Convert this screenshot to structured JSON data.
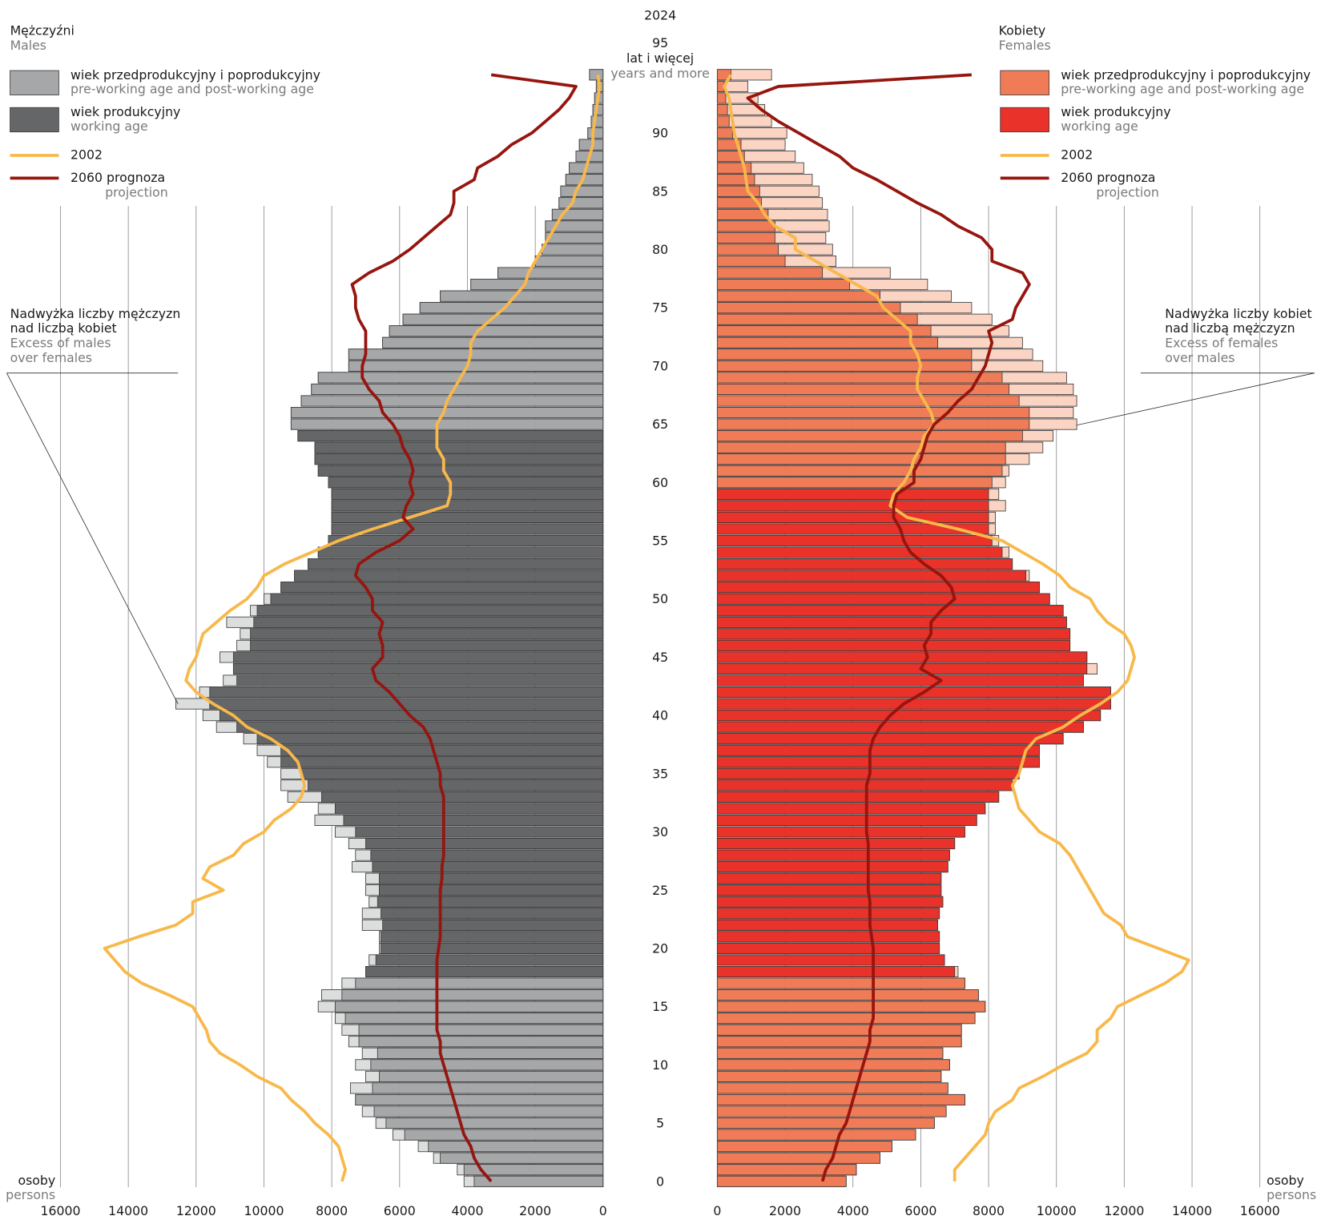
{
  "chart_data": {
    "type": "pyramid",
    "title": "2024",
    "ages": [
      0,
      1,
      2,
      3,
      4,
      5,
      6,
      7,
      8,
      9,
      10,
      11,
      12,
      13,
      14,
      15,
      16,
      17,
      18,
      19,
      20,
      21,
      22,
      23,
      24,
      25,
      26,
      27,
      28,
      29,
      30,
      31,
      32,
      33,
      34,
      35,
      36,
      37,
      38,
      39,
      40,
      41,
      42,
      43,
      44,
      45,
      46,
      47,
      48,
      49,
      50,
      51,
      52,
      53,
      54,
      55,
      56,
      57,
      58,
      59,
      60,
      61,
      62,
      63,
      64,
      65,
      66,
      67,
      68,
      69,
      70,
      71,
      72,
      73,
      74,
      75,
      76,
      77,
      78,
      79,
      80,
      81,
      82,
      83,
      84,
      85,
      86,
      87,
      88,
      89,
      90,
      91,
      92,
      93,
      94,
      95
    ],
    "ylim": [
      0,
      95
    ],
    "yticks": [
      0,
      5,
      10,
      15,
      20,
      25,
      30,
      35,
      40,
      45,
      50,
      55,
      60,
      65,
      70,
      75,
      80,
      85,
      90,
      95
    ],
    "top_age_label": "lat i więcej",
    "top_age_label_en": "years and more",
    "unit_label": "osoby",
    "unit_label_en": "persons",
    "xlim": [
      0,
      16000
    ],
    "xticks": [
      0,
      2000,
      4000,
      6000,
      8000,
      10000,
      12000,
      14000,
      16000
    ],
    "grid": true,
    "panels": [
      {
        "name": "Mężczyźni",
        "name_en": "Males",
        "side": "left",
        "working_age": [
          18,
          64
        ],
        "colors": {
          "other": "#a6a7a9",
          "working": "#656668",
          "excess": "#dcdddd"
        },
        "legend": [
          {
            "label": "wiek przedprodukcyjny i poprodukcyjny",
            "label_en": "pre-working age and post-working age",
            "color": "#a6a7a9"
          },
          {
            "label": "wiek produkcyjny",
            "label_en": "working age",
            "color": "#656668"
          }
        ],
        "annotation": [
          "Nadwyżka liczby mężczyzn",
          "nad liczbą kobiet"
        ],
        "annotation_en": [
          "Excess of males",
          "over females"
        ],
        "values": [
          4100,
          4300,
          5000,
          5450,
          6200,
          6700,
          7100,
          7300,
          7450,
          7000,
          7300,
          7100,
          7500,
          7700,
          7900,
          8400,
          8300,
          7700,
          7000,
          6900,
          6600,
          6600,
          7100,
          7100,
          6900,
          7000,
          7000,
          7400,
          7300,
          7500,
          7900,
          8500,
          8400,
          9300,
          9500,
          9500,
          9900,
          10200,
          10600,
          11400,
          11800,
          12600,
          11900,
          11200,
          10900,
          11300,
          10800,
          10700,
          11100,
          10400,
          10000,
          9500,
          9100,
          8700,
          8400,
          8100,
          8000,
          8000,
          8000,
          8000,
          8100,
          8400,
          8500,
          8500,
          9000,
          9200,
          9200,
          8900,
          8600,
          8400,
          7500,
          7500,
          6500,
          6300,
          5900,
          5400,
          4800,
          3900,
          3100,
          2000,
          1800,
          1700,
          1700,
          1500,
          1300,
          1250,
          1100,
          1000,
          800,
          700,
          450,
          350,
          300,
          250,
          200,
          400
        ],
        "lines": [
          {
            "name": "2002",
            "color": "#f8b84a",
            "values": [
              7700,
              7600,
              7700,
              7800,
              8100,
              8500,
              8800,
              9200,
              9500,
              10200,
              10700,
              11300,
              11600,
              11700,
              11900,
              12100,
              12800,
              13600,
              14100,
              14400,
              14700,
              13700,
              12600,
              12100,
              12100,
              11200,
              11800,
              11600,
              10900,
              10600,
              10000,
              9700,
              9200,
              8900,
              8800,
              8900,
              9000,
              9300,
              9800,
              10500,
              10900,
              11500,
              12000,
              12300,
              12200,
              12000,
              11900,
              11800,
              11400,
              11000,
              10500,
              10200,
              10000,
              9400,
              8600,
              7800,
              6800,
              5700,
              4600,
              4500,
              4500,
              4700,
              4700,
              4900,
              4900,
              4900,
              4700,
              4600,
              4400,
              4200,
              4000,
              3900,
              3900,
              3700,
              3300,
              2900,
              2600,
              2300,
              2200,
              2000,
              1800,
              1600,
              1400,
              1200,
              900,
              800,
              600,
              500,
              400,
              300,
              300,
              250,
              200,
              150,
              100,
              150
            ]
          },
          {
            "name": "2060 prognoza",
            "name_en": "projection",
            "color": "#96150f",
            "values": [
              3300,
              3600,
              3800,
              3900,
              4100,
              4200,
              4300,
              4400,
              4500,
              4600,
              4700,
              4800,
              4800,
              4900,
              4900,
              4900,
              4900,
              4900,
              4900,
              4900,
              4850,
              4800,
              4800,
              4800,
              4800,
              4800,
              4750,
              4750,
              4700,
              4700,
              4700,
              4700,
              4700,
              4700,
              4800,
              4800,
              4900,
              5000,
              5100,
              5300,
              5700,
              6000,
              6300,
              6700,
              6800,
              6500,
              6500,
              6600,
              6500,
              6800,
              6800,
              7000,
              7300,
              7200,
              6700,
              6000,
              5600,
              5900,
              5800,
              5600,
              5700,
              5600,
              5700,
              5900,
              6000,
              6200,
              6500,
              6600,
              6900,
              7100,
              7100,
              7000,
              7000,
              7000,
              7200,
              7300,
              7300,
              7400,
              6900,
              6200,
              5700,
              5300,
              4900,
              4500,
              4400,
              4400,
              3800,
              3700,
              3100,
              2700,
              2100,
              1700,
              1300,
              1000,
              800,
              3300
            ]
          }
        ]
      },
      {
        "name": "Kobiety",
        "name_en": "Females",
        "side": "right",
        "working_age": [
          18,
          59
        ],
        "colors": {
          "other": "#f07b57",
          "working": "#e8322a",
          "excess": "#fbd4c3"
        },
        "legend": [
          {
            "label": "wiek przedprodukcyjny i poprodukcyjny",
            "label_en": "pre-working age and post-working age",
            "color": "#f07b57"
          },
          {
            "label": "wiek produkcyjny",
            "label_en": "working age",
            "color": "#e8322a"
          }
        ],
        "annotation": [
          "Nadwyżka liczby kobiet",
          "nad liczbą mężczyzn"
        ],
        "annotation_en": [
          "Excess of females",
          "over males"
        ],
        "values": [
          3800,
          4100,
          4800,
          5150,
          5850,
          6400,
          6750,
          7300,
          6800,
          6600,
          6850,
          6650,
          7200,
          7200,
          7600,
          7900,
          7700,
          7300,
          7100,
          6700,
          6550,
          6550,
          6500,
          6550,
          6650,
          6600,
          6600,
          6800,
          6850,
          7000,
          7300,
          7650,
          7900,
          8300,
          8700,
          8900,
          9500,
          9500,
          10200,
          10800,
          11300,
          11600,
          11600,
          10800,
          11200,
          10900,
          10400,
          10400,
          10300,
          10200,
          9800,
          9500,
          9200,
          8700,
          8600,
          8300,
          8200,
          8200,
          8500,
          8300,
          8500,
          8600,
          9200,
          9600,
          9900,
          10600,
          10500,
          10600,
          10500,
          10300,
          9600,
          9300,
          9000,
          8600,
          8100,
          7500,
          6900,
          6200,
          5100,
          3500,
          3400,
          3200,
          3300,
          3250,
          3100,
          3000,
          2800,
          2550,
          2300,
          2000,
          2050,
          1600,
          1400,
          1200,
          900,
          1600
        ],
        "lines": [
          {
            "name": "2002",
            "color": "#f8b84a",
            "values": [
              7000,
              7000,
              7300,
              7600,
              7900,
              8000,
              8200,
              8700,
              8900,
              9600,
              10200,
              10900,
              11200,
              11200,
              11600,
              11800,
              12500,
              13200,
              13700,
              13900,
              13000,
              12100,
              11900,
              11400,
              11200,
              11000,
              10800,
              10600,
              10400,
              10100,
              9500,
              9200,
              8900,
              8800,
              8700,
              8900,
              9000,
              9100,
              9400,
              10200,
              10700,
              11300,
              11800,
              12100,
              12200,
              12300,
              12200,
              12000,
              11500,
              11200,
              11000,
              10400,
              10100,
              9600,
              9000,
              8400,
              7100,
              5600,
              5100,
              5200,
              5500,
              5700,
              5800,
              6000,
              6100,
              6400,
              6300,
              6100,
              5900,
              5900,
              6000,
              5900,
              5700,
              5700,
              5300,
              4900,
              4700,
              4100,
              3500,
              2900,
              2300,
              2300,
              1700,
              1400,
              1200,
              900,
              850,
              800,
              700,
              600,
              500,
              450,
              400,
              350,
              200,
              400
            ]
          },
          {
            "name": "2060 prognoza",
            "name_en": "projection",
            "color": "#96150f",
            "values": [
              3100,
              3200,
              3400,
              3500,
              3600,
              3800,
              3900,
              4000,
              4100,
              4200,
              4300,
              4400,
              4500,
              4500,
              4600,
              4600,
              4600,
              4600,
              4600,
              4600,
              4600,
              4550,
              4500,
              4500,
              4500,
              4450,
              4450,
              4450,
              4450,
              4450,
              4400,
              4400,
              4400,
              4400,
              4400,
              4500,
              4500,
              4500,
              4600,
              4800,
              5100,
              5500,
              6100,
              6600,
              6000,
              6200,
              6100,
              6300,
              6300,
              6600,
              7000,
              6900,
              6600,
              6100,
              5700,
              5500,
              5400,
              5200,
              5200,
              5300,
              5800,
              5800,
              6000,
              6100,
              6200,
              6400,
              6800,
              7100,
              7500,
              7700,
              7900,
              8000,
              8100,
              8000,
              8700,
              8800,
              9000,
              9200,
              9000,
              8100,
              8100,
              7800,
              7100,
              6600,
              5900,
              5300,
              4700,
              4000,
              3600,
              3000,
              2400,
              1800,
              1300,
              900,
              1800,
              7500
            ]
          }
        ]
      }
    ]
  }
}
